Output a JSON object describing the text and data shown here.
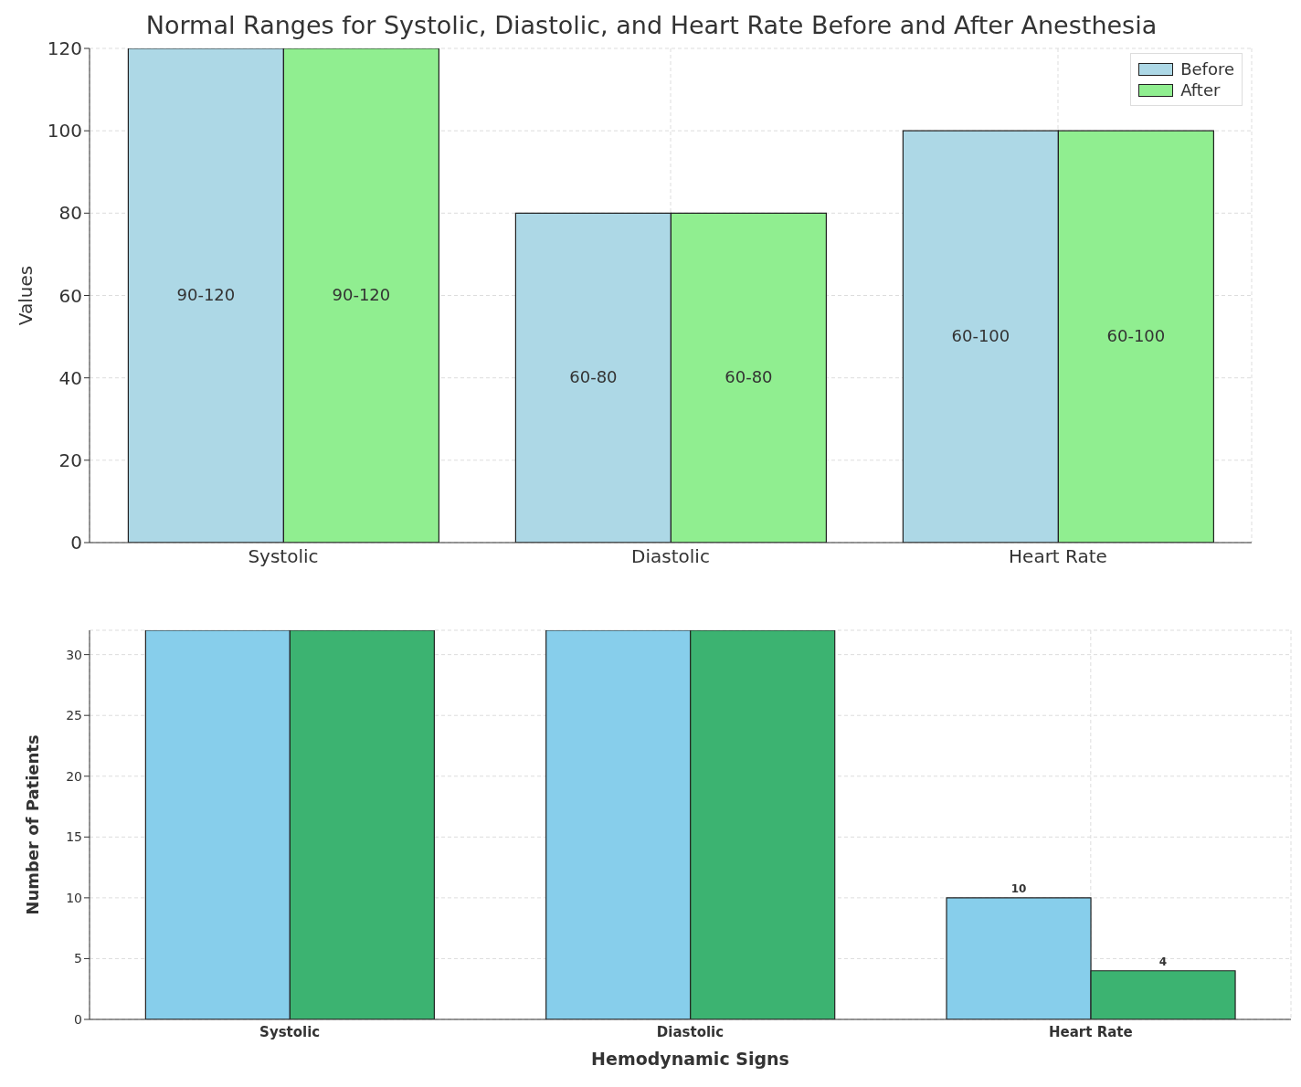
{
  "chart_data": [
    {
      "type": "bar",
      "title": "Normal Ranges for Systolic, Diastolic, and Heart Rate Before and After Anesthesia",
      "ylabel": "Values",
      "categories": [
        "Systolic",
        "Diastolic",
        "Heart Rate"
      ],
      "series": [
        {
          "name": "Before",
          "color": "#add8e6",
          "values": [
            120,
            80,
            100
          ],
          "value_labels": [
            "90-120",
            "60-80",
            "60-100"
          ]
        },
        {
          "name": "After",
          "color": "#90ee90",
          "values": [
            120,
            80,
            100
          ],
          "value_labels": [
            "90-120",
            "60-80",
            "60-100"
          ]
        }
      ],
      "ylim": [
        0,
        120
      ],
      "yticks": [
        0,
        20,
        40,
        60,
        80,
        100,
        120
      ],
      "grid": true,
      "legend": "top right"
    },
    {
      "type": "bar",
      "xlabel": "Hemodynamic Signs",
      "ylabel": "Number of Patients",
      "categories": [
        "Systolic",
        "Diastolic",
        "Heart Rate"
      ],
      "series": [
        {
          "color": "#87ceeb",
          "values": [
            32,
            32,
            10
          ],
          "value_labels": [
            null,
            null,
            "10"
          ]
        },
        {
          "color": "#3cb371",
          "values": [
            32,
            32,
            4
          ],
          "value_labels": [
            null,
            null,
            "4"
          ]
        }
      ],
      "ylim": [
        0,
        32
      ],
      "yticks": [
        0,
        5,
        10,
        15,
        20,
        25,
        30
      ],
      "grid": true
    }
  ]
}
